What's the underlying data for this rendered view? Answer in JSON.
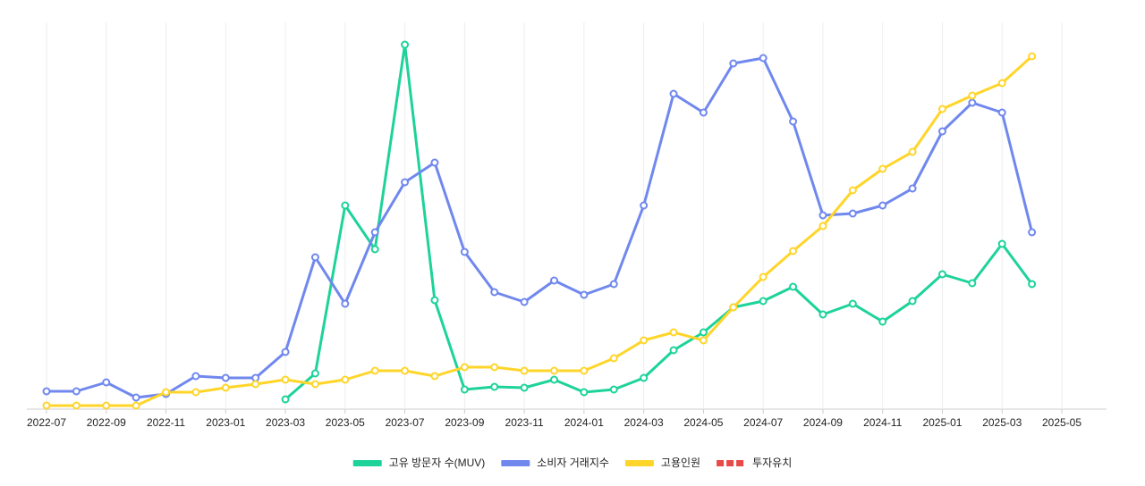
{
  "chart_data": {
    "type": "line",
    "x": [
      "2022-07",
      "2022-08",
      "2022-09",
      "2022-10",
      "2022-11",
      "2022-12",
      "2023-01",
      "2023-02",
      "2023-03",
      "2023-04",
      "2023-05",
      "2023-06",
      "2023-07",
      "2023-08",
      "2023-09",
      "2023-10",
      "2023-11",
      "2023-12",
      "2024-01",
      "2024-02",
      "2024-03",
      "2024-04",
      "2024-05",
      "2024-06",
      "2024-07",
      "2024-08",
      "2024-09",
      "2024-10",
      "2024-11",
      "2024-12",
      "2025-01",
      "2025-02",
      "2025-03",
      "2025-04"
    ],
    "xlim": [
      "2022-07",
      "2025-05"
    ],
    "xticks": [
      "2022-07",
      "2022-09",
      "2022-11",
      "2023-01",
      "2023-03",
      "2023-05",
      "2023-07",
      "2023-09",
      "2023-11",
      "2024-01",
      "2024-03",
      "2024-05",
      "2024-07",
      "2024-09",
      "2024-11",
      "2025-01",
      "2025-03",
      "2025-05"
    ],
    "ylim": [
      0,
      430
    ],
    "grid": true,
    "legend": "bottom",
    "series": [
      {
        "name": "고유 방문자 수(MUV)",
        "color": "#1dd39a",
        "values": [
          null,
          null,
          null,
          null,
          null,
          null,
          null,
          null,
          11,
          40,
          228,
          179,
          408,
          122,
          22,
          25,
          24,
          33,
          19,
          22,
          35,
          66,
          86,
          114,
          121,
          137,
          106,
          118,
          98,
          121,
          151,
          141,
          185,
          140
        ]
      },
      {
        "name": "소비자 거래지수",
        "color": "#7088ee",
        "values": [
          20,
          20,
          30,
          13,
          17,
          37,
          35,
          35,
          64,
          170,
          118,
          198,
          254,
          276,
          176,
          131,
          120,
          144,
          128,
          140,
          228,
          353,
          332,
          387,
          393,
          322,
          217,
          219,
          228,
          247,
          311,
          343,
          332,
          198
        ]
      },
      {
        "name": "고용인원",
        "color": "#ffd52a",
        "values": [
          4,
          4,
          4,
          4,
          19,
          19,
          24,
          28,
          33,
          28,
          33,
          43,
          43,
          37,
          47,
          47,
          43,
          43,
          43,
          57,
          77,
          86,
          77,
          114,
          148,
          177,
          205,
          245,
          269,
          288,
          336,
          351,
          365,
          395
        ]
      },
      {
        "name": "투자유치",
        "color": "#e84a4a",
        "dashed": true,
        "values": [
          null,
          null,
          null,
          null,
          null,
          null,
          null,
          null,
          null,
          null,
          null,
          null,
          null,
          null,
          null,
          null,
          null,
          null,
          null,
          null,
          null,
          null,
          null,
          null,
          null,
          null,
          null,
          null,
          null,
          null,
          null,
          null,
          null,
          null
        ]
      }
    ]
  }
}
